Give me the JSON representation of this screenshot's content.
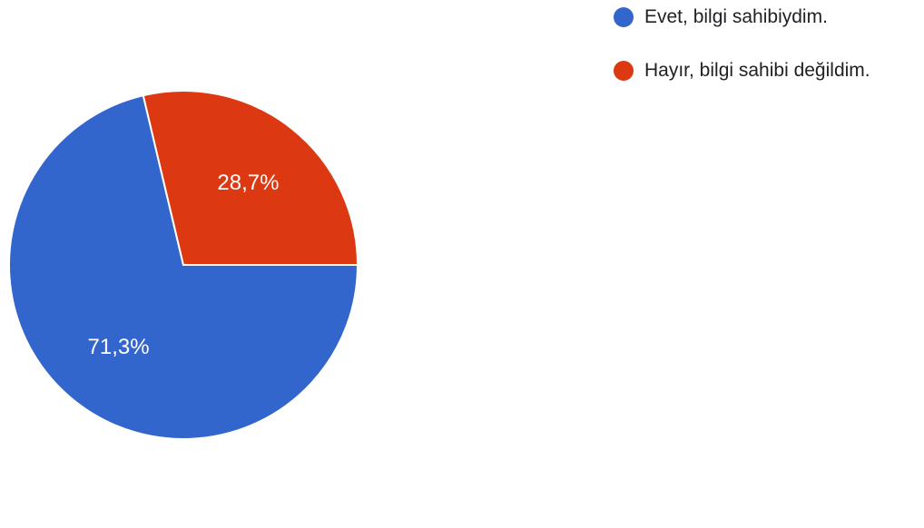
{
  "chart_data": {
    "type": "pie",
    "slices": [
      {
        "label": "Evet, bilgi sahibiydim.",
        "value": 71.3,
        "value_label": "71,3%",
        "color": "#3366cc"
      },
      {
        "label": "Hayır, bilgi sahibi değildim.",
        "value": 28.7,
        "value_label": "28,7%",
        "color": "#dc3912"
      }
    ],
    "legend_position": "top-right"
  }
}
